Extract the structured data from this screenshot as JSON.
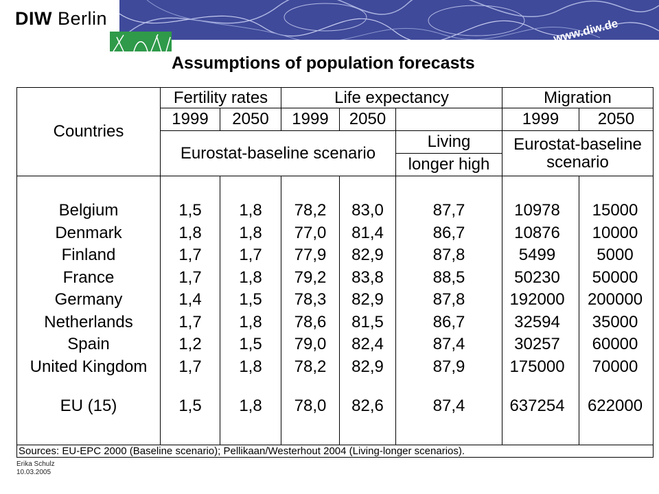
{
  "header": {
    "logo_bold": "DIW",
    "logo_rest": " Berlin",
    "url": "www.diw.de",
    "brand_color": "#3f4a9a",
    "accent_color": "#2f9a4a"
  },
  "title": "Assumptions of population forecasts",
  "table": {
    "countries_label": "Countries",
    "fertility_label": "Fertility rates",
    "life_label": "Life expectancy",
    "migration_label": "Migration",
    "years": [
      "1999",
      "2050"
    ],
    "baseline_label": "Eurostat-baseline scenario",
    "living_line1": "Living",
    "living_line2": "longer high",
    "mig_baseline_line1": "Eurostat-baseline",
    "mig_baseline_line2": "scenario",
    "rows": [
      {
        "country": "Belgium",
        "fert1999": "1,5",
        "fert2050": "1,8",
        "life1999": "78,2",
        "life2050": "83,0",
        "living": "87,7",
        "mig1999": "10978",
        "mig2050": "15000"
      },
      {
        "country": "Denmark",
        "fert1999": "1,8",
        "fert2050": "1,8",
        "life1999": "77,0",
        "life2050": "81,4",
        "living": "86,7",
        "mig1999": "10876",
        "mig2050": "10000"
      },
      {
        "country": "Finland",
        "fert1999": "1,7",
        "fert2050": "1,7",
        "life1999": "77,9",
        "life2050": "82,9",
        "living": "87,8",
        "mig1999": "5499",
        "mig2050": "5000"
      },
      {
        "country": "France",
        "fert1999": "1,7",
        "fert2050": "1,8",
        "life1999": "79,2",
        "life2050": "83,8",
        "living": "88,5",
        "mig1999": "50230",
        "mig2050": "50000"
      },
      {
        "country": "Germany",
        "fert1999": "1,4",
        "fert2050": "1,5",
        "life1999": "78,3",
        "life2050": "82,9",
        "living": "87,8",
        "mig1999": "192000",
        "mig2050": "200000"
      },
      {
        "country": "Netherlands",
        "fert1999": "1,7",
        "fert2050": "1,8",
        "life1999": "78,6",
        "life2050": "81,5",
        "living": "86,7",
        "mig1999": "32594",
        "mig2050": "35000"
      },
      {
        "country": "Spain",
        "fert1999": "1,2",
        "fert2050": "1,5",
        "life1999": "79,0",
        "life2050": "82,4",
        "living": "87,4",
        "mig1999": "30257",
        "mig2050": "60000"
      },
      {
        "country": "United Kingdom",
        "fert1999": "1,7",
        "fert2050": "1,8",
        "life1999": "78,2",
        "life2050": "82,9",
        "living": "87,9",
        "mig1999": "175000",
        "mig2050": "70000"
      }
    ],
    "eu_row": {
      "country": "EU (15)",
      "fert1999": "1,5",
      "fert2050": "1,8",
      "life1999": "78,0",
      "life2050": "82,6",
      "living": "87,4",
      "mig1999": "637254",
      "mig2050": "622000"
    },
    "sources": "Sources: EU-EPC 2000 (Baseline scenario); Pellikaan/Westerhout 2004 (Living-longer scenarios)."
  },
  "footer": {
    "author": "Erika Schulz",
    "date": "10.03.2005"
  }
}
